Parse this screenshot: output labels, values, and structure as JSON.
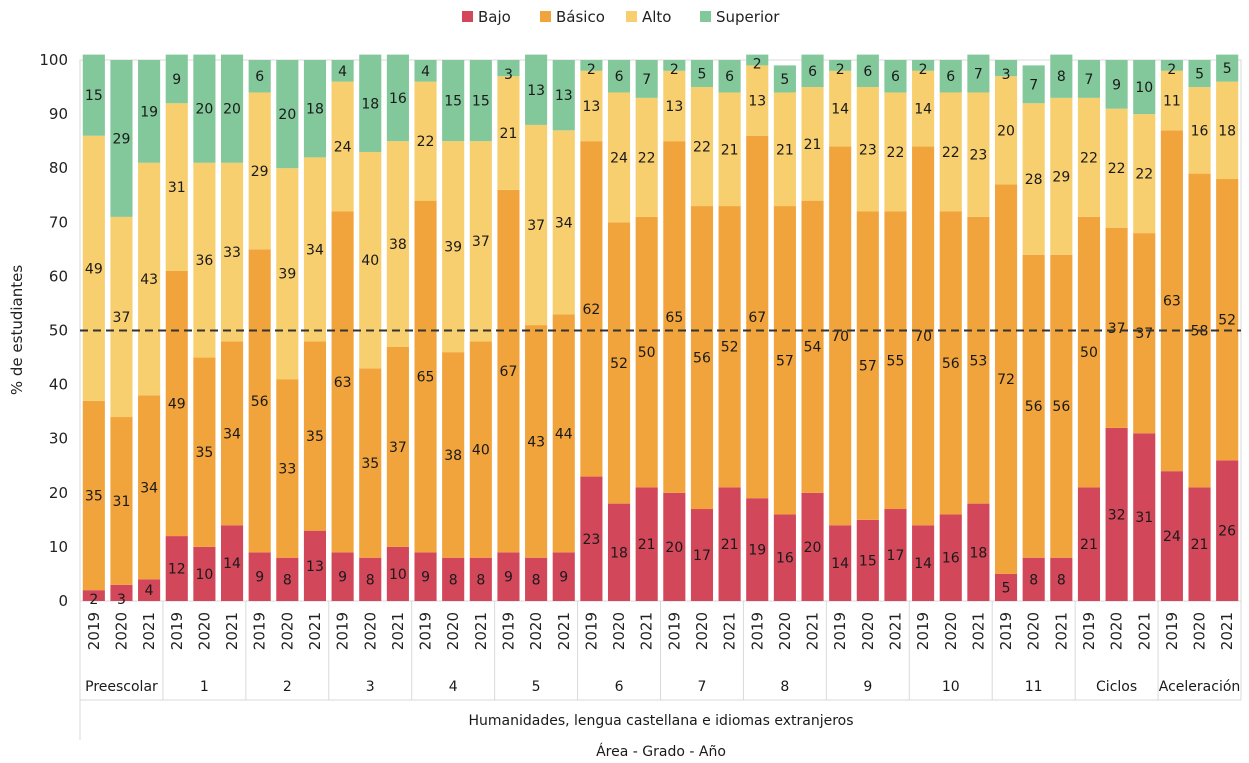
{
  "chart_data": {
    "type": "bar",
    "stacked": true,
    "ylabel": "% de estudiantes",
    "xlabel": "Área - Grado - Año",
    "area_label": "Humanidades, lengua castellana e idiomas extranjeros",
    "ylim": [
      0,
      100
    ],
    "yticks": [
      0,
      10,
      20,
      30,
      40,
      50,
      60,
      70,
      80,
      90,
      100
    ],
    "reference_line": 50,
    "legend_position": "top-center",
    "groups": [
      "Preescolar",
      "1",
      "2",
      "3",
      "4",
      "5",
      "6",
      "7",
      "8",
      "9",
      "10",
      "11",
      "Ciclos",
      "Aceleración"
    ],
    "years": [
      "2019",
      "2020",
      "2021"
    ],
    "series": [
      {
        "name": "Bajo",
        "color": "#d2475a",
        "values": [
          2,
          3,
          4,
          12,
          10,
          14,
          9,
          8,
          13,
          9,
          8,
          10,
          9,
          8,
          8,
          9,
          8,
          9,
          23,
          18,
          21,
          20,
          17,
          21,
          19,
          16,
          20,
          14,
          15,
          17,
          14,
          16,
          18,
          5,
          8,
          8,
          21,
          32,
          31,
          24,
          21,
          26
        ]
      },
      {
        "name": "Básico",
        "color": "#f2a43c",
        "values": [
          35,
          31,
          34,
          49,
          35,
          34,
          56,
          33,
          35,
          63,
          35,
          37,
          65,
          38,
          40,
          67,
          43,
          44,
          62,
          52,
          50,
          65,
          56,
          52,
          67,
          57,
          54,
          70,
          57,
          55,
          70,
          56,
          53,
          72,
          56,
          56,
          50,
          37,
          37,
          63,
          58,
          52
        ]
      },
      {
        "name": "Alto",
        "color": "#f7cf6f",
        "values": [
          49,
          37,
          43,
          31,
          36,
          33,
          29,
          39,
          34,
          24,
          40,
          38,
          22,
          39,
          37,
          21,
          37,
          34,
          13,
          24,
          22,
          13,
          22,
          21,
          13,
          21,
          21,
          14,
          23,
          22,
          14,
          22,
          23,
          20,
          28,
          29,
          22,
          22,
          22,
          11,
          16,
          18
        ]
      },
      {
        "name": "Superior",
        "color": "#82c89b",
        "values": [
          15,
          29,
          19,
          9,
          20,
          20,
          6,
          20,
          18,
          4,
          18,
          16,
          4,
          15,
          15,
          3,
          13,
          13,
          2,
          6,
          7,
          2,
          5,
          6,
          2,
          5,
          6,
          2,
          6,
          6,
          2,
          6,
          7,
          3,
          7,
          8,
          7,
          9,
          10,
          2,
          5,
          5
        ]
      }
    ]
  }
}
